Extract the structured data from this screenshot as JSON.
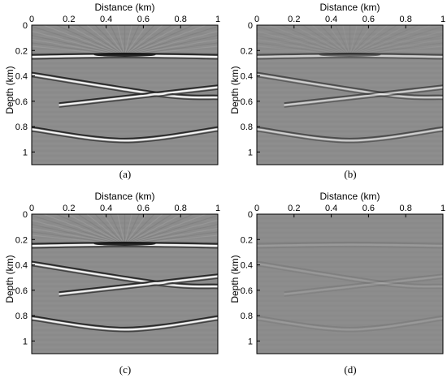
{
  "figure": {
    "panels": [
      {
        "id": "a",
        "label": "(a)",
        "style": "strong"
      },
      {
        "id": "b",
        "label": "(b)",
        "style": "medium"
      },
      {
        "id": "c",
        "label": "(c)",
        "style": "strong"
      },
      {
        "id": "d",
        "label": "(d)",
        "style": "residual"
      }
    ]
  },
  "chart_data": [
    {
      "type": "heatmap",
      "xlabel": "Distance (km)",
      "ylabel": "Depth (km)",
      "xticks": [
        "0",
        "0.2",
        "0.4",
        "0.6",
        "0.8",
        "1"
      ],
      "yticks": [
        "0",
        "0.2",
        "0.4",
        "0.6",
        "0.8",
        "1"
      ],
      "xlim": [
        0,
        1
      ],
      "ylim": [
        0,
        1.1
      ],
      "colormap": "gray",
      "reflectors": [
        {
          "name": "lens",
          "points": [
            [
              0,
              0.25
            ],
            [
              0.5,
              0.24
            ],
            [
              1,
              0.25
            ]
          ]
        },
        {
          "name": "dip-down",
          "points": [
            [
              0,
              0.39
            ],
            [
              0.7,
              0.55
            ],
            [
              1,
              0.57
            ]
          ]
        },
        {
          "name": "dip-up",
          "points": [
            [
              0.15,
              0.63
            ],
            [
              0.7,
              0.54
            ],
            [
              1,
              0.49
            ]
          ]
        },
        {
          "name": "syncline",
          "points": [
            [
              0,
              0.82
            ],
            [
              0.5,
              0.91
            ],
            [
              1,
              0.82
            ]
          ]
        }
      ]
    }
  ]
}
